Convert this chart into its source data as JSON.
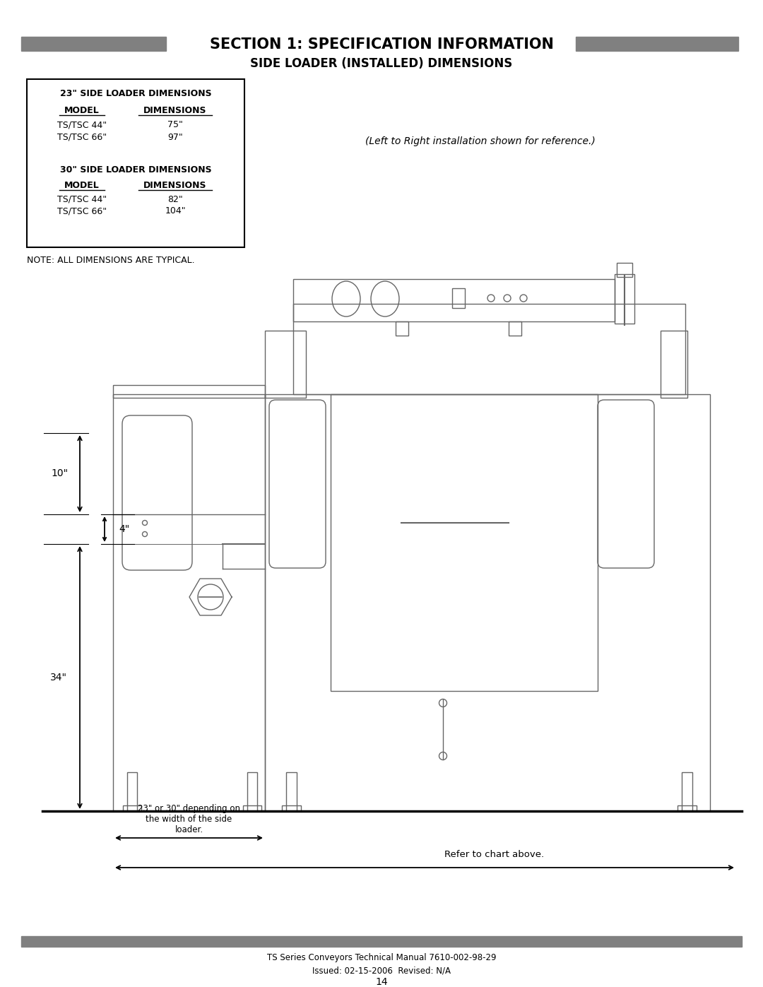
{
  "title1": "SECTION 1: SPECIFICATION INFORMATION",
  "title2": "SIDE LOADER (INSTALLED) DIMENSIONS",
  "box_title1": "23\" SIDE LOADER DIMENSIONS",
  "box_col1": "MODEL",
  "box_col2": "DIMENSIONS",
  "box_row1_model": "TS/TSC 44\"",
  "box_row1_dim": "75\"",
  "box_row2_model": "TS/TSC 66\"",
  "box_row2_dim": "97\"",
  "box_title2": "30\" SIDE LOADER DIMENSIONS",
  "box_col1b": "MODEL",
  "box_col2b": "DIMENSIONS",
  "box_row3_model": "TS/TSC 44\"",
  "box_row3_dim": "82\"",
  "box_row4_model": "TS/TSC 66\"",
  "box_row4_dim": "104\"",
  "note": "NOTE: ALL DIMENSIONS ARE TYPICAL.",
  "ref_note": "(Left to Right installation shown for reference.)",
  "dim_10": "10\"",
  "dim_4": "4\"",
  "dim_34": "34\"",
  "dim_width": "23\" or 30\" depending on\nthe width of the side\nloader.",
  "dim_ref": "Refer to chart above.",
  "footer1": "TS Series Conveyors Technical Manual 7610-002-98-29",
  "footer2": "Issued: 02-15-2006  Revised: N/A",
  "page": "14",
  "bg_color": "#ffffff",
  "line_color": "#000000",
  "gray_bar": "#808080",
  "drawing_line": "#666666"
}
